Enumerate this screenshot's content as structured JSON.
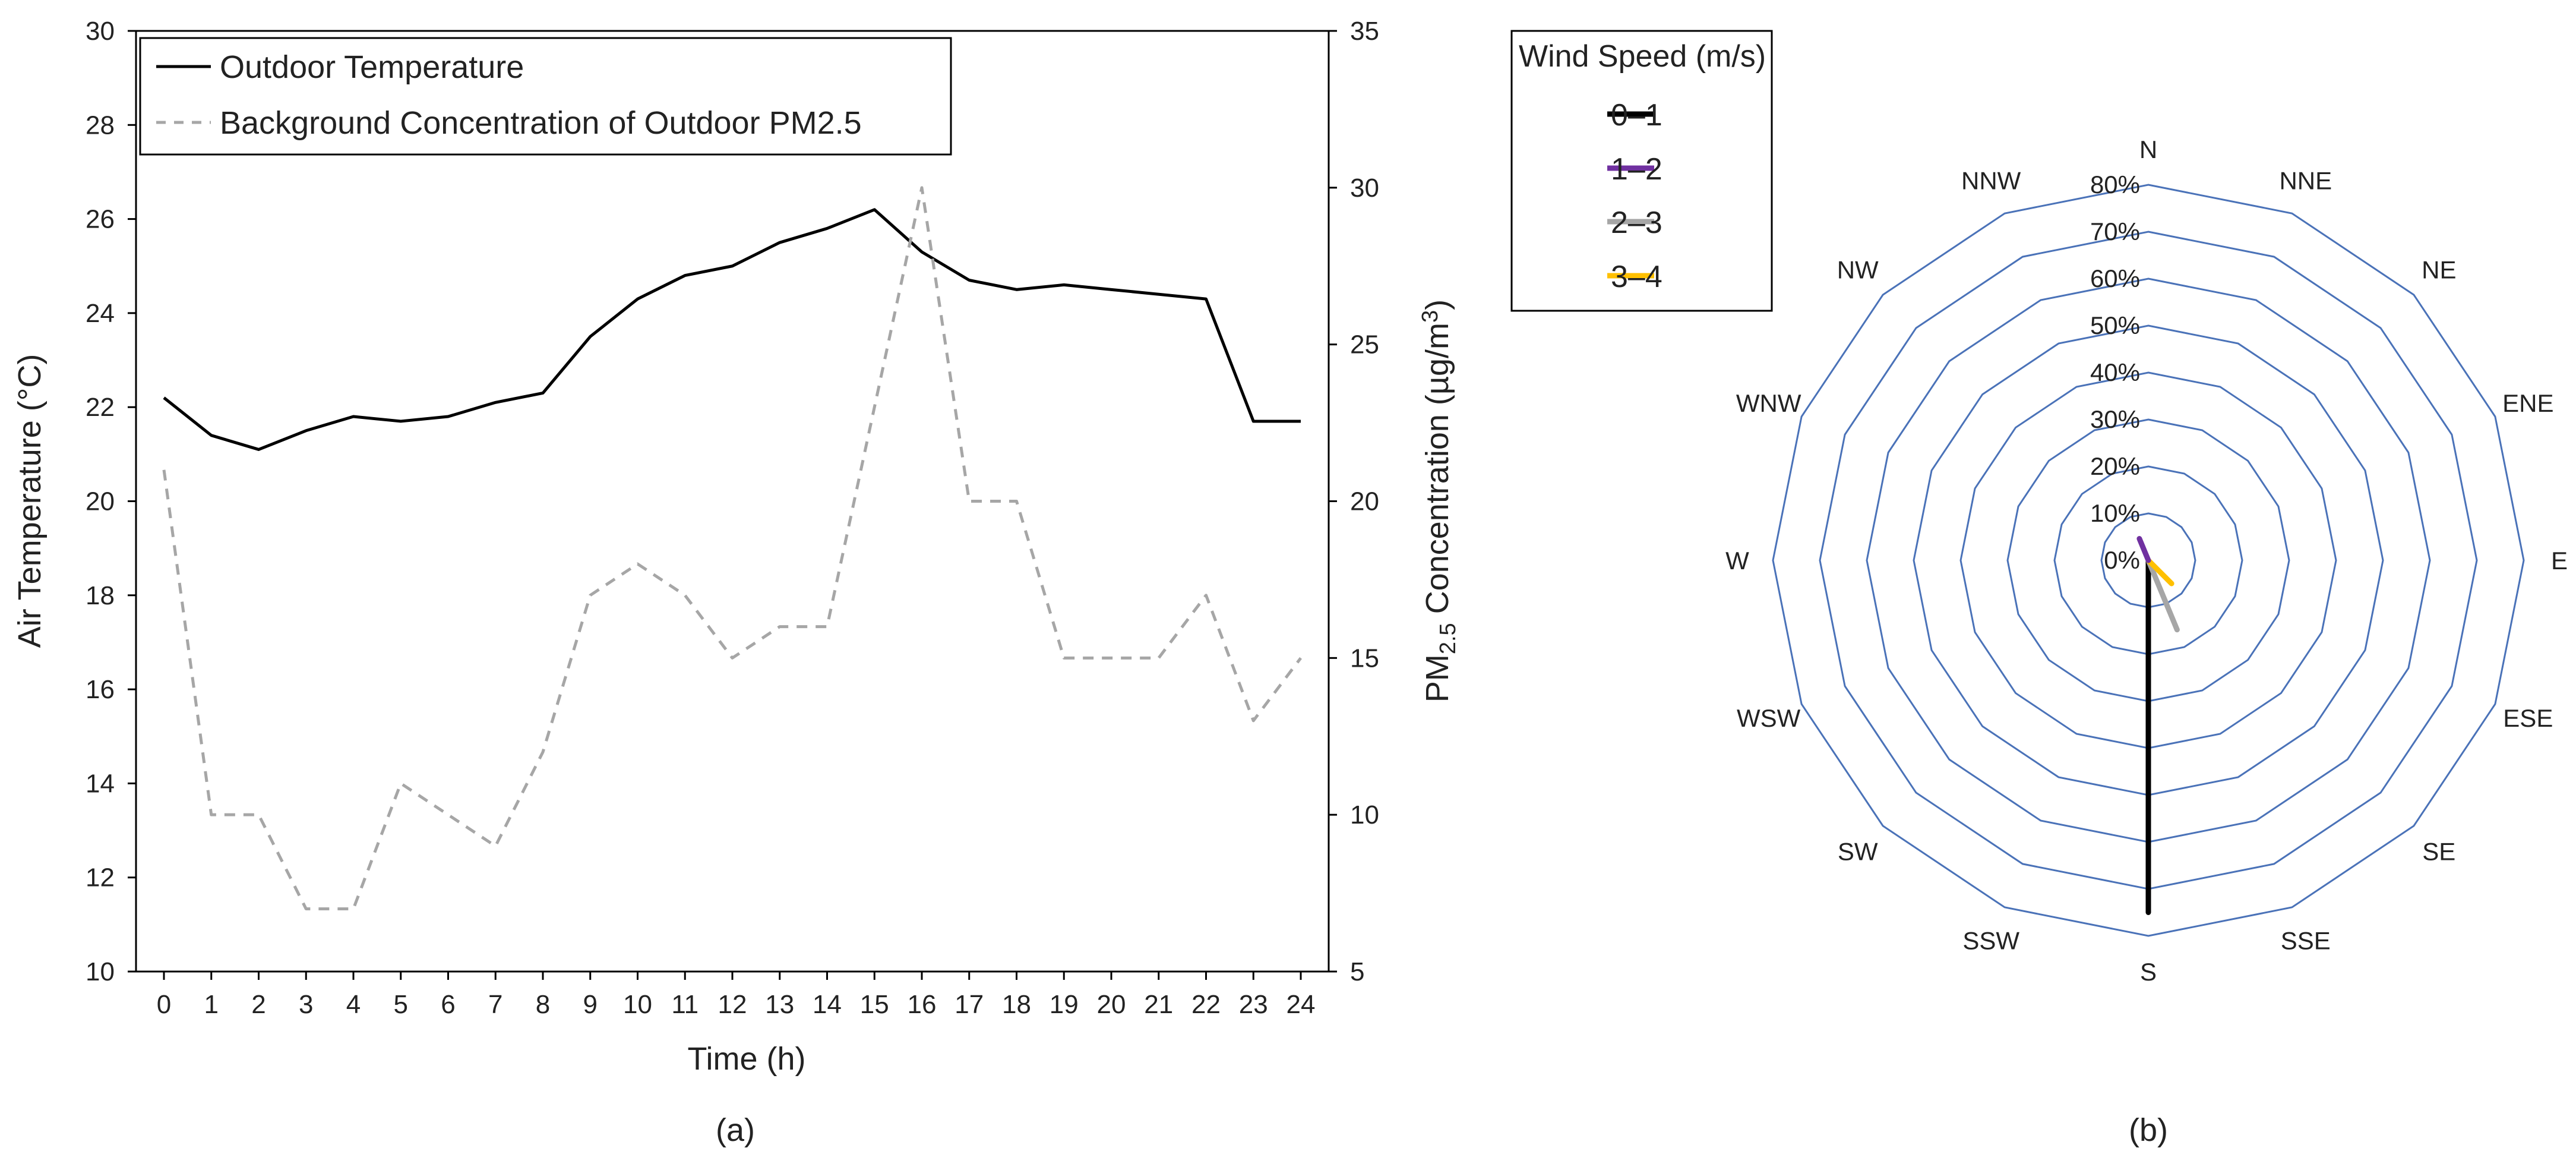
{
  "chart_data": [
    {
      "panel": "(a)",
      "type": "line",
      "xlabel": "Time (h)",
      "ylabel": "Air Temperature (°C)",
      "y2label_parts": [
        "PM",
        "2.5",
        " Concentration (µg/m",
        "3",
        ")"
      ],
      "x": [
        0,
        1,
        2,
        3,
        4,
        5,
        6,
        7,
        8,
        9,
        10,
        11,
        12,
        13,
        14,
        15,
        16,
        17,
        18,
        19,
        20,
        21,
        22,
        23,
        24
      ],
      "xlim": [
        0,
        24
      ],
      "ylim": [
        10,
        30
      ],
      "y_ticks": [
        10,
        12,
        14,
        16,
        18,
        20,
        22,
        24,
        26,
        28,
        30
      ],
      "y2lim": [
        5,
        35
      ],
      "y2_ticks": [
        5,
        10,
        15,
        20,
        25,
        30,
        35
      ],
      "grid": false,
      "legend_position": "top-left",
      "series": [
        {
          "name": "Outdoor Temperature",
          "axis": "left",
          "color": "#000000",
          "style": "solid",
          "values": [
            22.2,
            21.4,
            21.1,
            21.5,
            21.8,
            21.7,
            21.8,
            22.1,
            22.3,
            23.5,
            24.3,
            24.8,
            25.0,
            25.5,
            25.8,
            26.2,
            25.3,
            24.7,
            24.5,
            24.6,
            24.5,
            24.4,
            24.3,
            21.7,
            21.7
          ]
        },
        {
          "name": "Background Concentration of Outdoor PM2.5",
          "axis": "right",
          "color": "#a6a6a6",
          "style": "dashed",
          "values": [
            21,
            10,
            10,
            7,
            7,
            11,
            10,
            9,
            12,
            17,
            18,
            17,
            15,
            16,
            16,
            23,
            30,
            20,
            20,
            15,
            15,
            15,
            17,
            13,
            15
          ]
        }
      ]
    },
    {
      "panel": "(b)",
      "type": "radar",
      "directions": [
        "N",
        "NNE",
        "NE",
        "ENE",
        "E",
        "ESE",
        "SE",
        "SSE",
        "S",
        "SSW",
        "SW",
        "WSW",
        "W",
        "WNW",
        "NW",
        "NNW"
      ],
      "radial_ticks": [
        "0%",
        "10%",
        "20%",
        "30%",
        "40%",
        "50%",
        "60%",
        "70%",
        "80%"
      ],
      "rmax": 80,
      "grid_color": "#4a72b8",
      "legend_title": "Wind Speed (m/s)",
      "legend_position": "top-left",
      "series": [
        {
          "name": "0–1",
          "color": "#000000",
          "direction": "S",
          "value": 75
        },
        {
          "name": "1–2",
          "color": "#7030a0",
          "direction": "NNW",
          "value": 5
        },
        {
          "name": "2–3",
          "color": "#a6a6a6",
          "direction": "SSE",
          "value": 16
        },
        {
          "name": "3–4",
          "color": "#ffc000",
          "direction": "SE",
          "value": 7
        }
      ]
    }
  ]
}
